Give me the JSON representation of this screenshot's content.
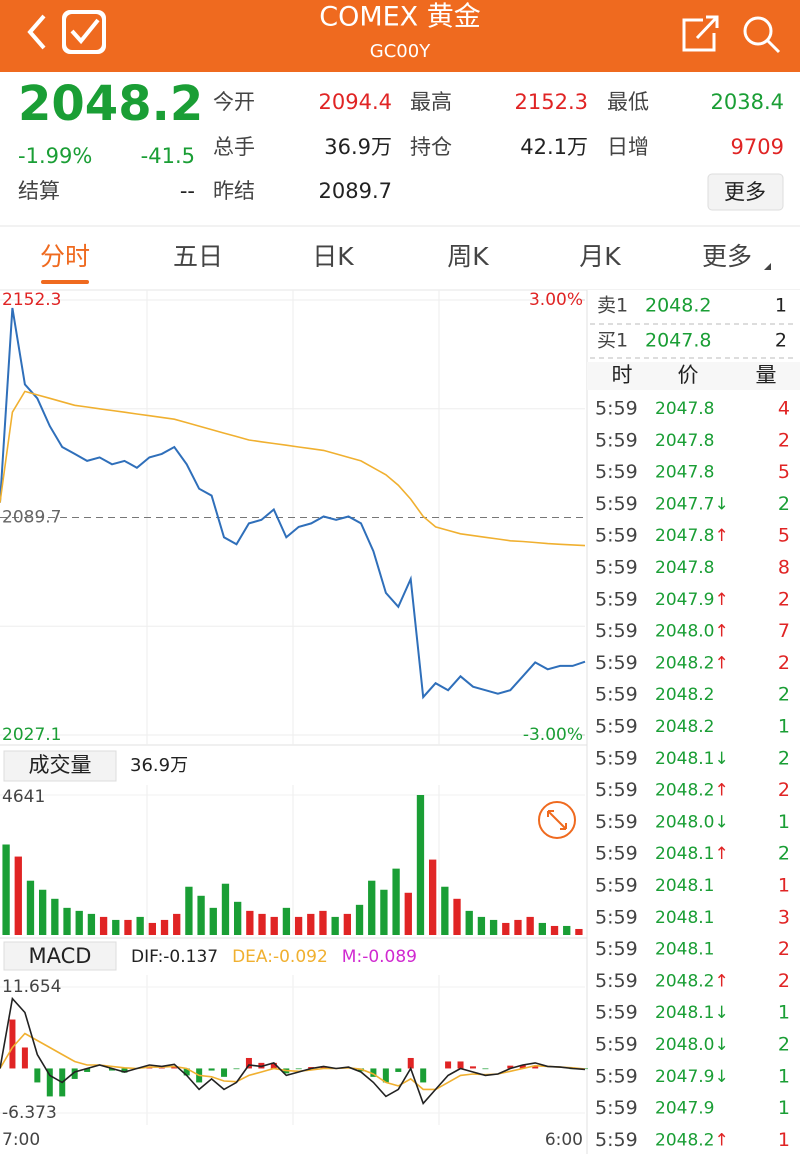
{
  "header": {
    "title": "COMEX 黄金",
    "subtitle": "GC00Y"
  },
  "quote": {
    "price": "2048.2",
    "change_pct": "-1.99%",
    "change": "-41.5",
    "color": "#1a9e35",
    "fields": [
      {
        "label": "今开",
        "value": "2094.4",
        "color": "#e02424"
      },
      {
        "label": "最高",
        "value": "2152.3",
        "color": "#e02424"
      },
      {
        "label": "最低",
        "value": "2038.4",
        "color": "#1a9e35"
      },
      {
        "label": "总手",
        "value": "36.9万",
        "color": "#222222"
      },
      {
        "label": "持仓",
        "value": "42.1万",
        "color": "#222222"
      },
      {
        "label": "日增",
        "value": "9709",
        "color": "#e02424"
      },
      {
        "label": "结算",
        "value": "--",
        "color": "#222222"
      },
      {
        "label": "昨结",
        "value": "2089.7",
        "color": "#222222"
      }
    ],
    "more_button": "更多"
  },
  "tabs": {
    "items": [
      "分时",
      "五日",
      "日K",
      "周K",
      "月K",
      "更多"
    ],
    "active": 0
  },
  "chart_data": [
    {
      "type": "line",
      "ylim": [
        2027.1,
        2152.3
      ],
      "yticks": [
        2152.3,
        2089.7,
        2027.1
      ],
      "ytick_colors": [
        "#e02424",
        "#666666",
        "#1a9e35"
      ],
      "y2lim": [
        -3,
        3
      ],
      "y2ticks": [
        {
          "value": 3,
          "label": "3.00%"
        },
        {
          "value": -3,
          "label": "-3.00%"
        }
      ],
      "y2tick_colors": [
        "#e02424",
        "#1a9e35"
      ],
      "grid": true,
      "series": [
        {
          "color": "#2f6fba",
          "values": [
            2094,
            2150,
            2128,
            2124,
            2116,
            2110,
            2108,
            2106,
            2107,
            2105,
            2106,
            2104,
            2107,
            2108,
            2110,
            2105,
            2098,
            2096,
            2084,
            2082,
            2088,
            2089,
            2092,
            2084,
            2087,
            2088,
            2090,
            2089,
            2090,
            2088,
            2080,
            2068,
            2064,
            2072,
            2038,
            2042,
            2040,
            2044,
            2041,
            2040,
            2039,
            2040,
            2044,
            2048,
            2046,
            2047,
            2047,
            2048.2
          ]
        },
        {
          "color": "#f0b030",
          "values": [
            2094,
            2120,
            2126,
            2125,
            2124,
            2123,
            2122,
            2121.5,
            2121,
            2120.5,
            2120,
            2119.5,
            2119,
            2118.5,
            2118,
            2117,
            2116,
            2115,
            2114,
            2113,
            2112,
            2111.5,
            2111,
            2110.5,
            2110,
            2109.5,
            2109,
            2108,
            2107,
            2106,
            2104,
            2102,
            2099,
            2095,
            2090,
            2087,
            2086,
            2085,
            2084.5,
            2084,
            2083.5,
            2083,
            2082.8,
            2082.5,
            2082.2,
            2082,
            2081.8,
            2081.6
          ]
        }
      ]
    },
    {
      "type": "bar",
      "title": "成交量",
      "total": "36.9万",
      "ylim": [
        0,
        4641
      ],
      "yticks": [
        4641
      ],
      "values": [
        3000,
        2600,
        1800,
        1500,
        1200,
        900,
        800,
        700,
        600,
        500,
        500,
        600,
        400,
        500,
        700,
        1600,
        1300,
        900,
        1700,
        1100,
        800,
        700,
        600,
        900,
        600,
        700,
        800,
        600,
        700,
        1000,
        1800,
        1500,
        2200,
        1400,
        4641,
        2500,
        1600,
        1200,
        800,
        600,
        500,
        400,
        500,
        600,
        400,
        300,
        300,
        200
      ],
      "colors": [
        "#1a9e35",
        "#e02424",
        "#1a9e35",
        "#1a9e35",
        "#1a9e35",
        "#1a9e35",
        "#1a9e35",
        "#1a9e35",
        "#e02424",
        "#1a9e35",
        "#e02424",
        "#1a9e35",
        "#e02424",
        "#e02424",
        "#e02424",
        "#1a9e35",
        "#1a9e35",
        "#1a9e35",
        "#1a9e35",
        "#1a9e35",
        "#e02424",
        "#e02424",
        "#e02424",
        "#1a9e35",
        "#e02424",
        "#e02424",
        "#e02424",
        "#1a9e35",
        "#e02424",
        "#1a9e35",
        "#1a9e35",
        "#1a9e35",
        "#1a9e35",
        "#e02424",
        "#1a9e35",
        "#e02424",
        "#1a9e35",
        "#e02424",
        "#1a9e35",
        "#1a9e35",
        "#1a9e35",
        "#e02424",
        "#e02424",
        "#e02424",
        "#1a9e35",
        "#e02424",
        "#1a9e35",
        "#e02424"
      ]
    },
    {
      "type": "macd",
      "title": "MACD",
      "ylim": [
        -6.373,
        11.654
      ],
      "yticks": [
        11.654,
        -6.373
      ],
      "x_labels": [
        "7:00",
        "6:00"
      ],
      "indicators": [
        {
          "label": "DIF:-0.137",
          "color": "#222222"
        },
        {
          "label": "DEA:-0.092",
          "color": "#f0b030"
        },
        {
          "label": "M:-0.089",
          "color": "#d02ad0"
        }
      ],
      "dif": [
        0,
        10,
        8,
        2,
        -1,
        -2,
        -0.5,
        0,
        0.5,
        0,
        -0.5,
        0,
        0.5,
        0.3,
        0.6,
        -1,
        -3,
        -1.5,
        -3,
        -2,
        0.5,
        0.3,
        0.8,
        -1,
        -0.5,
        0,
        0.3,
        0,
        0.2,
        -0.5,
        -2,
        -4,
        -3,
        0,
        -5,
        -3,
        -1,
        0,
        -0.5,
        -1,
        -0.8,
        0,
        0.5,
        0.8,
        0.3,
        0.2,
        0,
        -0.137
      ],
      "dea": [
        0,
        3,
        5,
        4,
        3,
        2,
        1,
        0.5,
        0.5,
        0.3,
        0.1,
        0,
        0.2,
        0.2,
        0.3,
        0,
        -1,
        -1.2,
        -1.8,
        -1.9,
        -1,
        -0.5,
        0,
        -0.3,
        -0.4,
        -0.2,
        0,
        0,
        0.1,
        -0.1,
        -0.8,
        -2,
        -2.5,
        -1.5,
        -3,
        -3,
        -2,
        -1,
        -0.8,
        -0.9,
        -0.8,
        -0.4,
        0,
        0.4,
        0.3,
        0.2,
        0.1,
        -0.092
      ],
      "m": [
        0,
        7,
        3,
        -2,
        -4,
        -4,
        -1.5,
        -0.5,
        0,
        -0.3,
        -0.6,
        0,
        0.3,
        0.1,
        0.3,
        -1,
        -2,
        -0.3,
        -1.2,
        -0.1,
        1.5,
        0.8,
        0.8,
        -0.7,
        -0.1,
        0.2,
        0.3,
        0,
        0.1,
        -0.4,
        -1.2,
        -2,
        -0.5,
        1.5,
        -2,
        0,
        1,
        1,
        0.3,
        -0.1,
        0,
        0.4,
        0.5,
        0.4,
        0,
        0,
        -0.1,
        -0.089
      ]
    }
  ],
  "order_book": [
    {
      "label": "卖1",
      "price": "2048.2",
      "qty": "1"
    },
    {
      "label": "买1",
      "price": "2047.8",
      "qty": "2"
    }
  ],
  "trades": {
    "columns": [
      "时",
      "价",
      "量"
    ],
    "rows": [
      {
        "time": "5:59",
        "price": "2047.8",
        "arrow": "",
        "qty": "4",
        "qty_color": "#e02424"
      },
      {
        "time": "5:59",
        "price": "2047.8",
        "arrow": "",
        "qty": "2",
        "qty_color": "#e02424"
      },
      {
        "time": "5:59",
        "price": "2047.8",
        "arrow": "",
        "qty": "5",
        "qty_color": "#e02424"
      },
      {
        "time": "5:59",
        "price": "2047.7",
        "arrow": "↓",
        "qty": "2",
        "qty_color": "#1a9e35"
      },
      {
        "time": "5:59",
        "price": "2047.8",
        "arrow": "↑",
        "qty": "5",
        "qty_color": "#e02424"
      },
      {
        "time": "5:59",
        "price": "2047.8",
        "arrow": "",
        "qty": "8",
        "qty_color": "#e02424"
      },
      {
        "time": "5:59",
        "price": "2047.9",
        "arrow": "↑",
        "qty": "2",
        "qty_color": "#e02424"
      },
      {
        "time": "5:59",
        "price": "2048.0",
        "arrow": "↑",
        "qty": "7",
        "qty_color": "#e02424"
      },
      {
        "time": "5:59",
        "price": "2048.2",
        "arrow": "↑",
        "qty": "2",
        "qty_color": "#e02424"
      },
      {
        "time": "5:59",
        "price": "2048.2",
        "arrow": "",
        "qty": "2",
        "qty_color": "#1a9e35"
      },
      {
        "time": "5:59",
        "price": "2048.2",
        "arrow": "",
        "qty": "1",
        "qty_color": "#1a9e35"
      },
      {
        "time": "5:59",
        "price": "2048.1",
        "arrow": "↓",
        "qty": "2",
        "qty_color": "#1a9e35"
      },
      {
        "time": "5:59",
        "price": "2048.2",
        "arrow": "↑",
        "qty": "2",
        "qty_color": "#e02424"
      },
      {
        "time": "5:59",
        "price": "2048.0",
        "arrow": "↓",
        "qty": "1",
        "qty_color": "#1a9e35"
      },
      {
        "time": "5:59",
        "price": "2048.1",
        "arrow": "↑",
        "qty": "2",
        "qty_color": "#1a9e35"
      },
      {
        "time": "5:59",
        "price": "2048.1",
        "arrow": "",
        "qty": "1",
        "qty_color": "#e02424"
      },
      {
        "time": "5:59",
        "price": "2048.1",
        "arrow": "",
        "qty": "3",
        "qty_color": "#e02424"
      },
      {
        "time": "5:59",
        "price": "2048.1",
        "arrow": "",
        "qty": "2",
        "qty_color": "#e02424"
      },
      {
        "time": "5:59",
        "price": "2048.2",
        "arrow": "↑",
        "qty": "2",
        "qty_color": "#e02424"
      },
      {
        "time": "5:59",
        "price": "2048.1",
        "arrow": "↓",
        "qty": "1",
        "qty_color": "#1a9e35"
      },
      {
        "time": "5:59",
        "price": "2048.0",
        "arrow": "↓",
        "qty": "2",
        "qty_color": "#1a9e35"
      },
      {
        "time": "5:59",
        "price": "2047.9",
        "arrow": "↓",
        "qty": "1",
        "qty_color": "#1a9e35"
      },
      {
        "time": "5:59",
        "price": "2047.9",
        "arrow": "",
        "qty": "1",
        "qty_color": "#1a9e35"
      },
      {
        "time": "5:59",
        "price": "2048.2",
        "arrow": "↑",
        "qty": "1",
        "qty_color": "#e02424"
      }
    ]
  }
}
